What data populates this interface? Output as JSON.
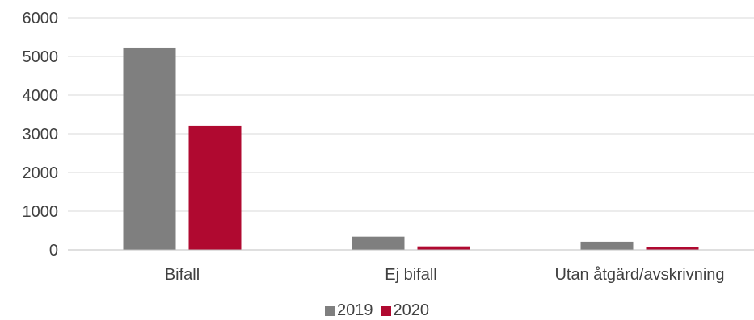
{
  "chart_data": {
    "type": "bar",
    "categories": [
      "Bifall",
      "Ej bifall",
      "Utan åtgärd/avskrivning"
    ],
    "series": [
      {
        "name": "2019",
        "values": [
          5230,
          340,
          210
        ],
        "color": "#7f7f7f"
      },
      {
        "name": "2020",
        "values": [
          3210,
          90,
          70
        ],
        "color": "#b00930"
      }
    ],
    "ylim": [
      0,
      6000
    ],
    "yticks": [
      0,
      1000,
      2000,
      3000,
      4000,
      5000,
      6000
    ],
    "grid": true,
    "legend_position": "bottom-center",
    "title": "",
    "xlabel": "",
    "ylabel": ""
  }
}
